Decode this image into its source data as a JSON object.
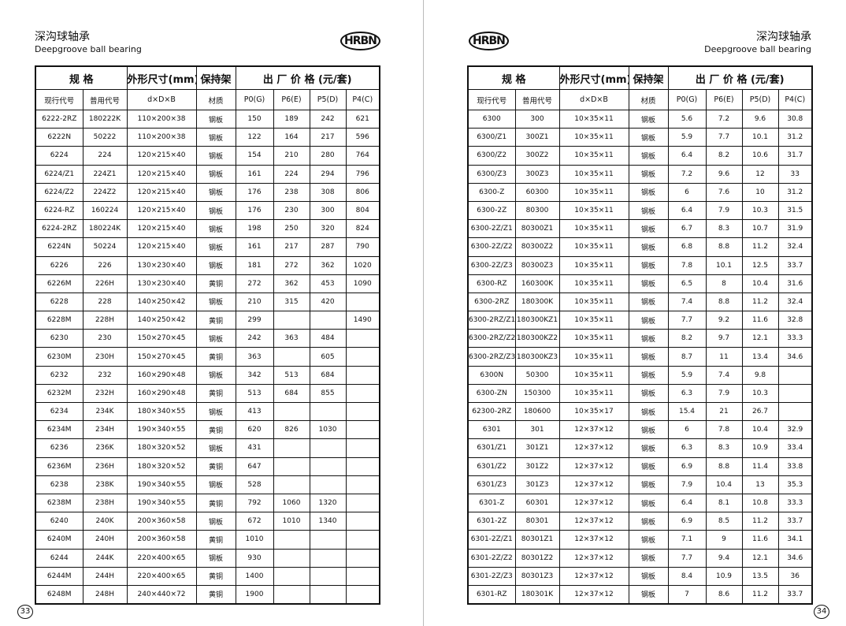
{
  "left_page": {
    "title": "深沟球轴承",
    "subtitle": "Deepgroove ball bearing",
    "logo": "HRBN",
    "page_number": "33",
    "table": {
      "header_groups": [
        "规  格",
        "外形尺寸(mm)",
        "保持架",
        "出 厂 价 格 (元/套)"
      ],
      "columns": [
        "现行代号",
        "普用代号",
        "d×D×B",
        "材质",
        "P0(G)",
        "P6(E)",
        "P5(D)",
        "P4(C)"
      ],
      "rows": [
        [
          "6222-2RZ",
          "180222K",
          "110×200×38",
          "钢板",
          "150",
          "189",
          "242",
          "621"
        ],
        [
          "6222N",
          "50222",
          "110×200×38",
          "钢板",
          "122",
          "164",
          "217",
          "596"
        ],
        [
          "6224",
          "224",
          "120×215×40",
          "钢板",
          "154",
          "210",
          "280",
          "764"
        ],
        [
          "6224/Z1",
          "224Z1",
          "120×215×40",
          "钢板",
          "161",
          "224",
          "294",
          "796"
        ],
        [
          "6224/Z2",
          "224Z2",
          "120×215×40",
          "钢板",
          "176",
          "238",
          "308",
          "806"
        ],
        [
          "6224-RZ",
          "160224",
          "120×215×40",
          "钢板",
          "176",
          "230",
          "300",
          "804"
        ],
        [
          "6224-2RZ",
          "180224K",
          "120×215×40",
          "钢板",
          "198",
          "250",
          "320",
          "824"
        ],
        [
          "6224N",
          "50224",
          "120×215×40",
          "钢板",
          "161",
          "217",
          "287",
          "790"
        ],
        [
          "6226",
          "226",
          "130×230×40",
          "钢板",
          "181",
          "272",
          "362",
          "1020"
        ],
        [
          "6226M",
          "226H",
          "130×230×40",
          "黄铜",
          "272",
          "362",
          "453",
          "1090"
        ],
        [
          "6228",
          "228",
          "140×250×42",
          "钢板",
          "210",
          "315",
          "420"
        ],
        [
          "6228M",
          "228H",
          "140×250×42",
          "黄铜",
          "299",
          null,
          null,
          "1490"
        ],
        [
          "6230",
          "230",
          "150×270×45",
          "钢板",
          "242",
          "363",
          "484"
        ],
        [
          "6230M",
          "230H",
          "150×270×45",
          "黄铜",
          "363",
          null,
          "605"
        ],
        [
          "6232",
          "232",
          "160×290×48",
          "钢板",
          "342",
          "513",
          "684"
        ],
        [
          "6232M",
          "232H",
          "160×290×48",
          "黄铜",
          "513",
          "684",
          "855"
        ],
        [
          "6234",
          "234K",
          "180×340×55",
          "钢板",
          "413"
        ],
        [
          "6234M",
          "234H",
          "190×340×55",
          "黄铜",
          "620",
          "826",
          "1030"
        ],
        [
          "6236",
          "236K",
          "180×320×52",
          "钢板",
          "431"
        ],
        [
          "6236M",
          "236H",
          "180×320×52",
          "黄铜",
          "647"
        ],
        [
          "6238",
          "238K",
          "190×340×55",
          "钢板",
          "528"
        ],
        [
          "6238M",
          "238H",
          "190×340×55",
          "黄铜",
          "792",
          "1060",
          "1320"
        ],
        [
          "6240",
          "240K",
          "200×360×58",
          "钢板",
          "672",
          "1010",
          "1340"
        ],
        [
          "6240M",
          "240H",
          "200×360×58",
          "黄铜",
          "1010"
        ],
        [
          "6244",
          "244K",
          "220×400×65",
          "钢板",
          "930"
        ],
        [
          "6244M",
          "244H",
          "220×400×65",
          "黄铜",
          "1400"
        ],
        [
          "6248M",
          "248H",
          "240×440×72",
          "黄铜",
          "1900"
        ]
      ]
    }
  },
  "right_page": {
    "title": "深沟球轴承",
    "subtitle": "Deepgroove ball bearing",
    "logo": "HRBN",
    "page_number": "34",
    "table": {
      "header_groups": [
        "规  格",
        "外形尺寸(mm)",
        "保持架",
        "出 厂 价 格 (元/套)"
      ],
      "columns": [
        "现行代号",
        "普用代号",
        "d×D×B",
        "材质",
        "P0(G)",
        "P6(E)",
        "P5(D)",
        "P4(C)"
      ],
      "rows": [
        [
          "6300",
          "300",
          "10×35×11",
          "钢板",
          "5.6",
          "7.2",
          "9.6",
          "30.8"
        ],
        [
          "6300/Z1",
          "300Z1",
          "10×35×11",
          "钢板",
          "5.9",
          "7.7",
          "10.1",
          "31.2"
        ],
        [
          "6300/Z2",
          "300Z2",
          "10×35×11",
          "钢板",
          "6.4",
          "8.2",
          "10.6",
          "31.7"
        ],
        [
          "6300/Z3",
          "300Z3",
          "10×35×11",
          "钢板",
          "7.2",
          "9.6",
          "12",
          "33"
        ],
        [
          "6300-Z",
          "60300",
          "10×35×11",
          "钢板",
          "6",
          "7.6",
          "10",
          "31.2"
        ],
        [
          "6300-2Z",
          "80300",
          "10×35×11",
          "钢板",
          "6.4",
          "7.9",
          "10.3",
          "31.5"
        ],
        [
          "6300-2Z/Z1",
          "80300Z1",
          "10×35×11",
          "钢板",
          "6.7",
          "8.3",
          "10.7",
          "31.9"
        ],
        [
          "6300-2Z/Z2",
          "80300Z2",
          "10×35×11",
          "钢板",
          "6.8",
          "8.8",
          "11.2",
          "32.4"
        ],
        [
          "6300-2Z/Z3",
          "80300Z3",
          "10×35×11",
          "钢板",
          "7.8",
          "10.1",
          "12.5",
          "33.7"
        ],
        [
          "6300-RZ",
          "160300K",
          "10×35×11",
          "钢板",
          "6.5",
          "8",
          "10.4",
          "31.6"
        ],
        [
          "6300-2RZ",
          "180300K",
          "10×35×11",
          "钢板",
          "7.4",
          "8.8",
          "11.2",
          "32.4"
        ],
        [
          "6300-2RZ/Z1",
          "180300KZ1",
          "10×35×11",
          "钢板",
          "7.7",
          "9.2",
          "11.6",
          "32.8"
        ],
        [
          "6300-2RZ/Z2",
          "180300KZ2",
          "10×35×11",
          "钢板",
          "8.2",
          "9.7",
          "12.1",
          "33.3"
        ],
        [
          "6300-2RZ/Z3",
          "180300KZ3",
          "10×35×11",
          "钢板",
          "8.7",
          "11",
          "13.4",
          "34.6"
        ],
        [
          "6300N",
          "50300",
          "10×35×11",
          "钢板",
          "5.9",
          "7.4",
          "9.8"
        ],
        [
          "6300-ZN",
          "150300",
          "10×35×11",
          "钢板",
          "6.3",
          "7.9",
          "10.3"
        ],
        [
          "62300-2RZ",
          "180600",
          "10×35×17",
          "钢板",
          "15.4",
          "21",
          "26.7"
        ],
        [
          "6301",
          "301",
          "12×37×12",
          "钢板",
          "6",
          "7.8",
          "10.4",
          "32.9"
        ],
        [
          "6301/Z1",
          "301Z1",
          "12×37×12",
          "钢板",
          "6.3",
          "8.3",
          "10.9",
          "33.4"
        ],
        [
          "6301/Z2",
          "301Z2",
          "12×37×12",
          "钢板",
          "6.9",
          "8.8",
          "11.4",
          "33.8"
        ],
        [
          "6301/Z3",
          "301Z3",
          "12×37×12",
          "钢板",
          "7.9",
          "10.4",
          "13",
          "35.3"
        ],
        [
          "6301-Z",
          "60301",
          "12×37×12",
          "钢板",
          "6.4",
          "8.1",
          "10.8",
          "33.3"
        ],
        [
          "6301-2Z",
          "80301",
          "12×37×12",
          "钢板",
          "6.9",
          "8.5",
          "11.2",
          "33.7"
        ],
        [
          "6301-2Z/Z1",
          "80301Z1",
          "12×37×12",
          "钢板",
          "7.1",
          "9",
          "11.6",
          "34.1"
        ],
        [
          "6301-2Z/Z2",
          "80301Z2",
          "12×37×12",
          "钢板",
          "7.7",
          "9.4",
          "12.1",
          "34.6"
        ],
        [
          "6301-2Z/Z3",
          "80301Z3",
          "12×37×12",
          "钢板",
          "8.4",
          "10.9",
          "13.5",
          "36"
        ],
        [
          "6301-RZ",
          "180301K",
          "12×37×12",
          "钢板",
          "7",
          "8.6",
          "11.2",
          "33.7"
        ]
      ]
    }
  }
}
